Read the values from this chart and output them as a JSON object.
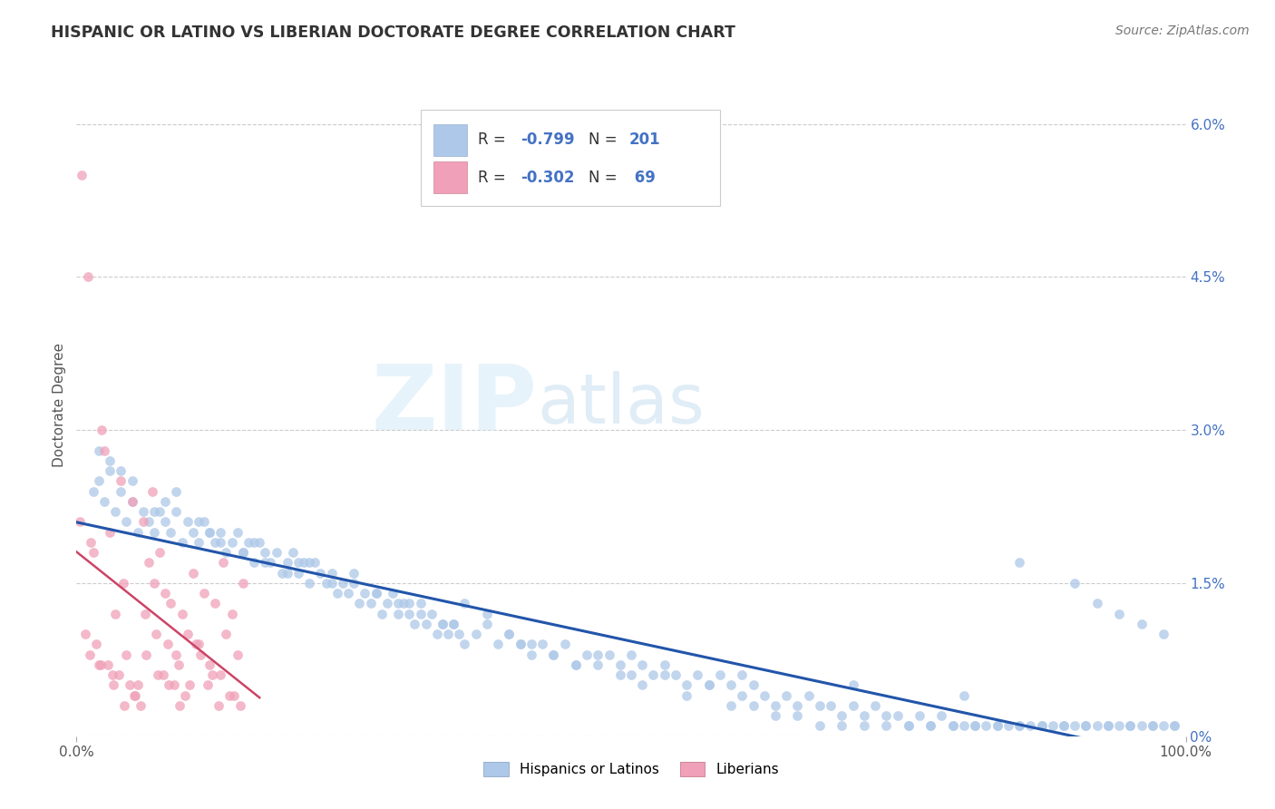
{
  "title": "HISPANIC OR LATINO VS LIBERIAN DOCTORATE DEGREE CORRELATION CHART",
  "source": "Source: ZipAtlas.com",
  "ylabel": "Doctorate Degree",
  "right_yticks": [
    "6.0%",
    "4.5%",
    "3.0%",
    "1.5%",
    "0%"
  ],
  "right_yvalues": [
    6.0,
    4.5,
    3.0,
    1.5,
    0.0
  ],
  "xmin": 0.0,
  "xmax": 100.0,
  "ymin": 0.0,
  "ymax": 6.5,
  "blue_color": "#adc8e8",
  "blue_line_color": "#2255aa",
  "pink_color": "#f0a0b8",
  "pink_line_color": "#cc4466",
  "blue_R": -0.799,
  "blue_N": 201,
  "pink_R": -0.302,
  "pink_N": 69,
  "watermark_zip": "ZIP",
  "watermark_atlas": "atlas",
  "legend_label_blue": "Hispanics or Latinos",
  "legend_label_pink": "Liberians",
  "blue_scatter_x": [
    1.5,
    2.0,
    2.5,
    3.0,
    3.5,
    4.0,
    4.5,
    5.0,
    5.5,
    6.0,
    6.5,
    7.0,
    7.5,
    8.0,
    8.5,
    9.0,
    9.5,
    10.0,
    10.5,
    11.0,
    11.5,
    12.0,
    12.5,
    13.0,
    13.5,
    14.0,
    14.5,
    15.0,
    15.5,
    16.0,
    16.5,
    17.0,
    17.5,
    18.0,
    18.5,
    19.0,
    19.5,
    20.0,
    20.5,
    21.0,
    21.5,
    22.0,
    22.5,
    23.0,
    23.5,
    24.0,
    24.5,
    25.0,
    25.5,
    26.0,
    26.5,
    27.0,
    27.5,
    28.0,
    28.5,
    29.0,
    29.5,
    30.0,
    30.5,
    31.0,
    31.5,
    32.0,
    32.5,
    33.0,
    33.5,
    34.0,
    34.5,
    35.0,
    36.0,
    37.0,
    38.0,
    39.0,
    40.0,
    41.0,
    42.0,
    43.0,
    44.0,
    45.0,
    46.0,
    47.0,
    48.0,
    49.0,
    50.0,
    51.0,
    52.0,
    53.0,
    54.0,
    55.0,
    56.0,
    57.0,
    58.0,
    59.0,
    60.0,
    61.0,
    62.0,
    63.0,
    64.0,
    65.0,
    66.0,
    67.0,
    68.0,
    69.0,
    70.0,
    71.0,
    72.0,
    73.0,
    74.0,
    75.0,
    76.0,
    77.0,
    78.0,
    79.0,
    80.0,
    81.0,
    82.0,
    83.0,
    84.0,
    85.0,
    86.0,
    87.0,
    88.0,
    89.0,
    90.0,
    91.0,
    92.0,
    93.0,
    94.0,
    95.0,
    96.0,
    97.0,
    98.0,
    99.0,
    3.0,
    5.0,
    7.0,
    9.0,
    11.0,
    13.0,
    15.0,
    17.0,
    19.0,
    21.0,
    23.0,
    25.0,
    27.0,
    29.0,
    31.0,
    33.0,
    35.0,
    37.0,
    39.0,
    41.0,
    43.0,
    45.0,
    47.0,
    49.0,
    51.0,
    53.0,
    55.0,
    57.0,
    59.0,
    61.0,
    63.0,
    65.0,
    67.0,
    69.0,
    71.0,
    73.0,
    75.0,
    77.0,
    79.0,
    81.0,
    83.0,
    85.0,
    87.0,
    89.0,
    91.0,
    93.0,
    95.0,
    97.0,
    99.0,
    2.0,
    4.0,
    8.0,
    12.0,
    16.0,
    20.0,
    30.0,
    34.0,
    40.0,
    50.0,
    60.0,
    70.0,
    80.0,
    85.0,
    90.0,
    92.0,
    94.0,
    96.0,
    98.0
  ],
  "blue_scatter_y": [
    2.4,
    2.5,
    2.3,
    2.6,
    2.2,
    2.4,
    2.1,
    2.3,
    2.0,
    2.2,
    2.1,
    2.0,
    2.2,
    2.1,
    2.0,
    2.2,
    1.9,
    2.1,
    2.0,
    1.9,
    2.1,
    2.0,
    1.9,
    2.0,
    1.8,
    1.9,
    2.0,
    1.8,
    1.9,
    1.7,
    1.9,
    1.8,
    1.7,
    1.8,
    1.6,
    1.7,
    1.8,
    1.6,
    1.7,
    1.5,
    1.7,
    1.6,
    1.5,
    1.6,
    1.4,
    1.5,
    1.4,
    1.5,
    1.3,
    1.4,
    1.3,
    1.4,
    1.2,
    1.3,
    1.4,
    1.2,
    1.3,
    1.2,
    1.1,
    1.3,
    1.1,
    1.2,
    1.0,
    1.1,
    1.0,
    1.1,
    1.0,
    0.9,
    1.0,
    1.1,
    0.9,
    1.0,
    0.9,
    0.8,
    0.9,
    0.8,
    0.9,
    0.7,
    0.8,
    0.7,
    0.8,
    0.7,
    0.6,
    0.7,
    0.6,
    0.7,
    0.6,
    0.5,
    0.6,
    0.5,
    0.6,
    0.5,
    0.4,
    0.5,
    0.4,
    0.3,
    0.4,
    0.3,
    0.4,
    0.3,
    0.3,
    0.2,
    0.3,
    0.2,
    0.3,
    0.2,
    0.2,
    0.1,
    0.2,
    0.1,
    0.2,
    0.1,
    0.1,
    0.1,
    0.1,
    0.1,
    0.1,
    0.1,
    0.1,
    0.1,
    0.1,
    0.1,
    0.1,
    0.1,
    0.1,
    0.1,
    0.1,
    0.1,
    0.1,
    0.1,
    0.1,
    0.1,
    2.7,
    2.5,
    2.2,
    2.4,
    2.1,
    1.9,
    1.8,
    1.7,
    1.6,
    1.7,
    1.5,
    1.6,
    1.4,
    1.3,
    1.2,
    1.1,
    1.3,
    1.2,
    1.0,
    0.9,
    0.8,
    0.7,
    0.8,
    0.6,
    0.5,
    0.6,
    0.4,
    0.5,
    0.3,
    0.3,
    0.2,
    0.2,
    0.1,
    0.1,
    0.1,
    0.1,
    0.1,
    0.1,
    0.1,
    0.1,
    0.1,
    0.1,
    0.1,
    0.1,
    0.1,
    0.1,
    0.1,
    0.1,
    0.1,
    2.8,
    2.6,
    2.3,
    2.0,
    1.9,
    1.7,
    1.3,
    1.1,
    0.9,
    0.8,
    0.6,
    0.5,
    0.4,
    1.7,
    1.5,
    1.3,
    1.2,
    1.1,
    1.0
  ],
  "pink_scatter_x": [
    0.5,
    1.0,
    1.5,
    2.0,
    2.5,
    3.0,
    3.5,
    4.0,
    4.5,
    5.0,
    5.5,
    6.0,
    6.5,
    7.0,
    7.5,
    8.0,
    8.5,
    9.0,
    9.5,
    10.0,
    10.5,
    11.0,
    11.5,
    12.0,
    12.5,
    13.0,
    13.5,
    14.0,
    14.5,
    15.0,
    0.8,
    1.8,
    2.8,
    3.8,
    4.8,
    5.8,
    6.8,
    7.8,
    8.8,
    9.8,
    10.8,
    11.8,
    12.8,
    13.8,
    14.8,
    1.2,
    2.2,
    3.2,
    4.2,
    5.2,
    6.2,
    7.2,
    8.2,
    9.2,
    10.2,
    11.2,
    12.2,
    13.2,
    14.2,
    0.3,
    1.3,
    2.3,
    3.3,
    4.3,
    5.3,
    6.3,
    7.3,
    8.3,
    9.3
  ],
  "pink_scatter_y": [
    5.5,
    4.5,
    1.8,
    0.7,
    2.8,
    2.0,
    1.2,
    2.5,
    0.8,
    2.3,
    0.5,
    2.1,
    1.7,
    1.5,
    1.8,
    1.4,
    1.3,
    0.8,
    1.2,
    1.0,
    1.6,
    0.9,
    1.4,
    0.7,
    1.3,
    0.6,
    1.0,
    1.2,
    0.8,
    1.5,
    1.0,
    0.9,
    0.7,
    0.6,
    0.5,
    0.3,
    2.4,
    0.6,
    0.5,
    0.4,
    0.9,
    0.5,
    0.3,
    0.4,
    0.3,
    0.8,
    0.7,
    0.6,
    1.5,
    0.4,
    1.2,
    1.0,
    0.9,
    0.7,
    0.5,
    0.8,
    0.6,
    1.7,
    0.4,
    2.1,
    1.9,
    3.0,
    0.5,
    0.3,
    0.4,
    0.8,
    0.6,
    0.5,
    0.3
  ]
}
